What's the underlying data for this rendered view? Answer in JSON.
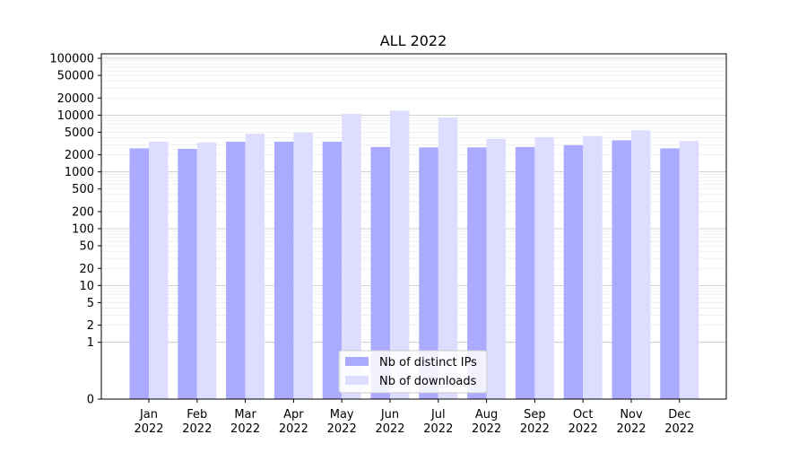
{
  "chart_data": {
    "type": "bar",
    "title": "ALL 2022",
    "xlabel": "",
    "ylabel": "",
    "y_scale": "symlog",
    "ylim": [
      0,
      120000
    ],
    "y_ticks": [
      0,
      1,
      2,
      5,
      10,
      20,
      50,
      100,
      200,
      500,
      1000,
      2000,
      5000,
      10000,
      20000,
      50000,
      100000
    ],
    "y_tick_labels": [
      "0",
      "1",
      "2",
      "5",
      "10",
      "20",
      "50",
      "100",
      "200",
      "500",
      "1000",
      "2000",
      "5000",
      "10000",
      "20000",
      "50000",
      "100000"
    ],
    "categories": [
      [
        "Jan",
        "2022"
      ],
      [
        "Feb",
        "2022"
      ],
      [
        "Mar",
        "2022"
      ],
      [
        "Apr",
        "2022"
      ],
      [
        "May",
        "2022"
      ],
      [
        "Jun",
        "2022"
      ],
      [
        "Jul",
        "2022"
      ],
      [
        "Aug",
        "2022"
      ],
      [
        "Sep",
        "2022"
      ],
      [
        "Oct",
        "2022"
      ],
      [
        "Nov",
        "2022"
      ],
      [
        "Dec",
        "2022"
      ]
    ],
    "series": [
      {
        "name": "Nb of distinct IPs",
        "color": "#aaaaff",
        "values": [
          2600,
          2550,
          3400,
          3400,
          3400,
          2750,
          2700,
          2700,
          2750,
          2950,
          3600,
          2600
        ]
      },
      {
        "name": "Nb of downloads",
        "color": "#ddddff",
        "values": [
          3400,
          3300,
          4700,
          4900,
          10500,
          12000,
          9000,
          3800,
          4100,
          4300,
          5400,
          3500
        ]
      }
    ],
    "grid": true,
    "legend_position": "lower-center"
  }
}
